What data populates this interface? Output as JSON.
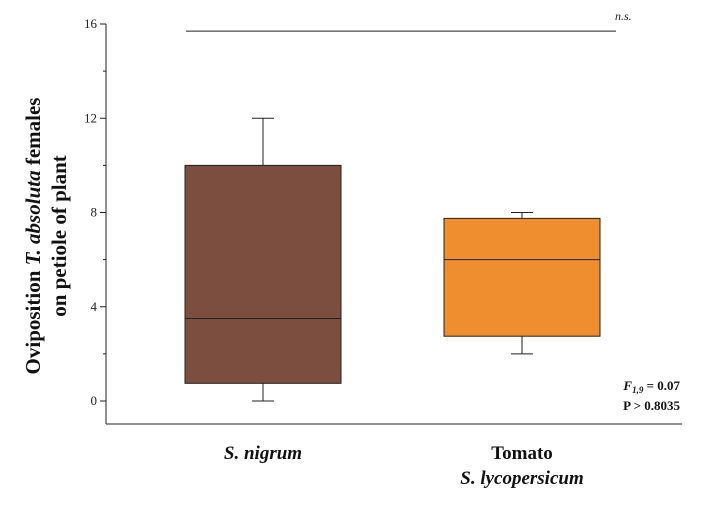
{
  "chart_data": {
    "type": "box",
    "ylabel_line1_prefix": "Oviposition ",
    "ylabel_line1_italic": "T. absoluta",
    "ylabel_line1_suffix": " females",
    "ylabel_line2": "on petiole of plant",
    "ylim": [
      0,
      16
    ],
    "yticks": [
      0,
      4,
      8,
      12,
      16
    ],
    "categories": [
      {
        "label_line1": "S. nigrum",
        "label_line1_italic": true,
        "label_line2": ""
      },
      {
        "label_line1": "Tomato",
        "label_line1_italic": false,
        "label_line2": "S. lycopersicum"
      }
    ],
    "boxes": [
      {
        "whisker_low": 0,
        "q1": 0.75,
        "median": 3.5,
        "q3": 10,
        "whisker_high": 12,
        "color": "#7B4E3F"
      },
      {
        "whisker_low": 2,
        "q1": 2.75,
        "median": 6,
        "q3": 7.75,
        "whisker_high": 8,
        "color": "#EE8E2E"
      }
    ],
    "significance": {
      "label": "n.s.",
      "y": 15.7
    },
    "stats": {
      "f_symbol": "F",
      "f_subscript": "1,9",
      "f_value": " = 0.07",
      "p_text": "P > 0.8035"
    }
  }
}
